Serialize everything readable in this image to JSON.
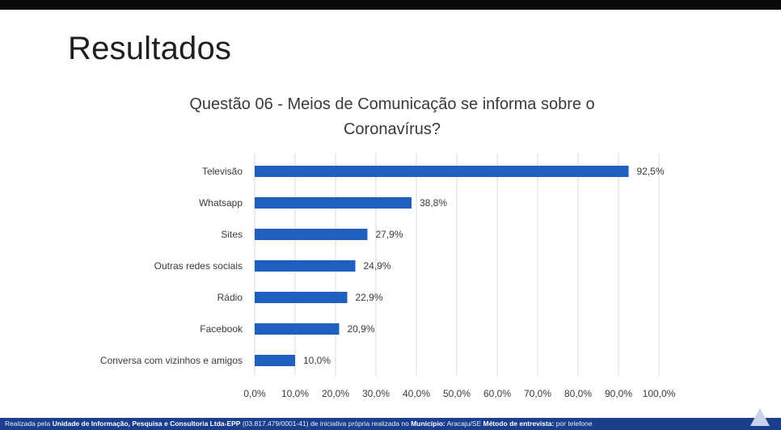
{
  "slide": {
    "title": "Resultados"
  },
  "chart_data": {
    "type": "bar",
    "orientation": "horizontal",
    "title": "Questão 06 - Meios de Comunicação se informa sobre o Coronavírus?",
    "title_lines": [
      "Questão 06 - Meios de Comunicação se informa sobre o",
      "Coronavírus?"
    ],
    "categories": [
      "Televisão",
      "Whatsapp",
      "Sites",
      "Outras redes sociais",
      "Rádio",
      "Facebook",
      "Conversa com vizinhos e amigos"
    ],
    "values": [
      92.5,
      38.8,
      27.9,
      24.9,
      22.9,
      20.9,
      10.0
    ],
    "data_labels": [
      "92,5%",
      "38,8%",
      "27,9%",
      "24,9%",
      "22,9%",
      "20,9%",
      "10,0%"
    ],
    "xlim": [
      0,
      100
    ],
    "x_ticks": [
      "0,0%",
      "10,0%",
      "20,0%",
      "30,0%",
      "40,0%",
      "50,0%",
      "60,0%",
      "70,0%",
      "80,0%",
      "90,0%",
      "100,0%"
    ],
    "grid": true,
    "legend": "none",
    "bar_color": "#1f5fbf"
  },
  "footer": {
    "prefix": "Realizada pela ",
    "org": "Unidade de Informação, Pesquisa e Consultoria Ltda-EPP",
    "mid": " (03.817.479/0001-41) de iniciativa própria realizada no ",
    "municipio_label": "Município:",
    "municipio": " Aracaju/SE ",
    "metodo_label": "Método de entrevista:",
    "metodo": " por telefone"
  }
}
